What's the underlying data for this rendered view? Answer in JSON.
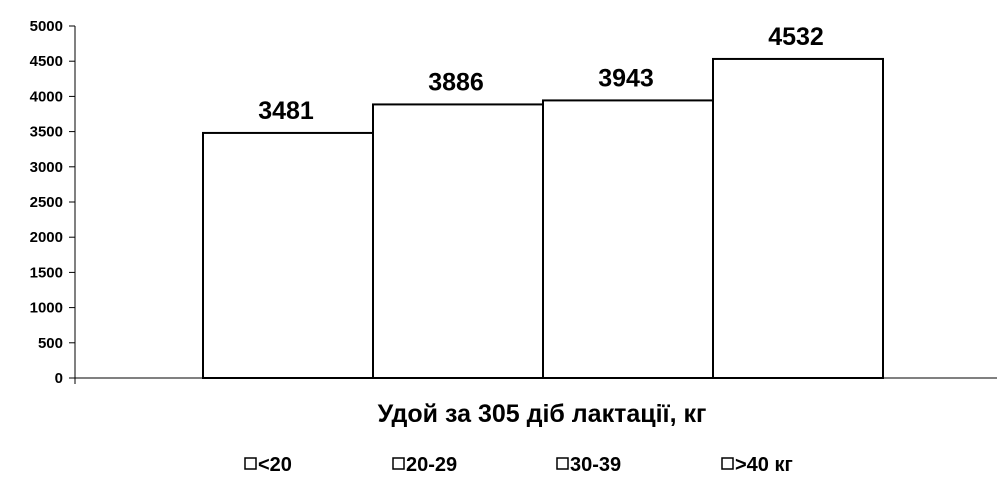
{
  "chart_data": {
    "type": "bar",
    "categories": [
      "<20",
      "20-29",
      "30-39",
      ">40 кг"
    ],
    "series": [
      {
        "values": [
          3481,
          3886,
          3943,
          4532
        ]
      }
    ],
    "data_labels": [
      "3481",
      "3886",
      "3943",
      "4532"
    ],
    "xlabel": "Удой за 305 діб лактації, кг",
    "ylabel": "",
    "ylim": [
      0,
      5000
    ],
    "yticks": [
      "0",
      "500",
      "1000",
      "1500",
      "2000",
      "2500",
      "3000",
      "3500",
      "4000",
      "4500",
      "5000"
    ],
    "legend": {
      "placement": "bottom",
      "entries": [
        "<20",
        "20-29",
        "30-39",
        ">40 кг"
      ]
    },
    "grid": false,
    "bar_fill": "#ffffff",
    "bar_stroke": "#000000"
  }
}
